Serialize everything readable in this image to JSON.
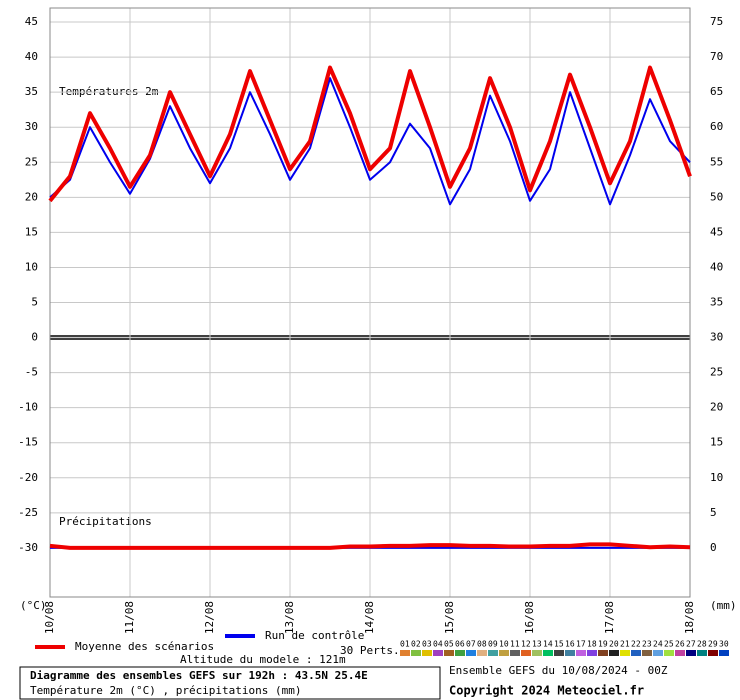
{
  "chart_data": {
    "type": "line",
    "annotations": {
      "temp_label": "Températures 2m",
      "precip_label": "Précipitations",
      "y_unit": "(°C)",
      "y2_unit": "(mm)",
      "altitude": "Altitude du modele : 121m",
      "perts": "30 Perts."
    },
    "footer": {
      "title": "Diagramme des ensembles GEFS sur 192h : 43.5N 25.4E",
      "subtitle": "Température 2m (°C) , précipitations (mm)",
      "run": "Ensemble GEFS du 10/08/2024 - 00Z",
      "copyright": "Copyright 2024 Meteociel.fr"
    },
    "x": [
      0,
      6,
      12,
      18,
      24,
      30,
      36,
      42,
      48,
      54,
      60,
      66,
      72,
      78,
      84,
      90,
      96,
      102,
      108,
      114,
      120,
      126,
      132,
      138,
      144,
      150,
      156,
      162,
      168,
      174,
      180,
      186,
      192
    ],
    "xlim": [
      0,
      192
    ],
    "xticks": [
      {
        "value": 0,
        "label": "10/08"
      },
      {
        "value": 24,
        "label": "11/08"
      },
      {
        "value": 48,
        "label": "12/08"
      },
      {
        "value": 72,
        "label": "13/08"
      },
      {
        "value": 96,
        "label": "14/08"
      },
      {
        "value": 120,
        "label": "15/08"
      },
      {
        "value": 144,
        "label": "16/08"
      },
      {
        "value": 168,
        "label": "17/08"
      },
      {
        "value": 192,
        "label": "18/08"
      }
    ],
    "ylim": [
      -37,
      47
    ],
    "yticks": [
      45,
      40,
      35,
      30,
      25,
      20,
      15,
      10,
      5,
      0,
      -5,
      -10,
      -15,
      -20,
      -25,
      -30
    ],
    "y2lim": [
      -7,
      77
    ],
    "y2ticks": [
      75,
      70,
      65,
      60,
      55,
      50,
      45,
      40,
      35,
      30,
      25,
      20,
      15,
      10,
      5,
      0
    ],
    "grid": true,
    "series": [
      {
        "name": "Moyenne des scénarios",
        "color": "#ee0000",
        "width": 4,
        "values": [
          19.5,
          23,
          32,
          27,
          21.5,
          26,
          35,
          29,
          23,
          29,
          38,
          31,
          24,
          28,
          38.5,
          32,
          24,
          27,
          38,
          30,
          21.5,
          27,
          37,
          30,
          21,
          28,
          37.5,
          30,
          22,
          28,
          38.5,
          31,
          23
        ]
      },
      {
        "name": "Run de contrôle",
        "color": "#0000ee",
        "width": 2,
        "values": [
          20,
          22.5,
          30,
          25,
          20.5,
          25.5,
          33,
          27,
          22,
          27,
          35,
          29,
          22.5,
          27,
          37,
          30,
          22.5,
          25,
          30.5,
          27,
          19,
          24,
          34.5,
          28,
          19.5,
          24,
          35,
          27,
          19,
          26,
          34,
          28,
          25
        ]
      },
      {
        "name": "Moyenne des scénarios",
        "color": "#ee0000",
        "width": 4,
        "axis": "y2",
        "values": [
          0.3,
          0,
          0,
          0,
          0,
          0,
          0,
          0,
          0,
          0,
          0,
          0,
          0,
          0,
          0,
          0.2,
          0.2,
          0.3,
          0.3,
          0.4,
          0.4,
          0.3,
          0.3,
          0.2,
          0.2,
          0.3,
          0.3,
          0.5,
          0.5,
          0.3,
          0.1,
          0.2,
          0.1
        ]
      },
      {
        "name": "Run de contrôle",
        "color": "#0000ee",
        "width": 2,
        "axis": "y2",
        "values": [
          0,
          0,
          0,
          0,
          0,
          0,
          0,
          0,
          0,
          0,
          0,
          0,
          0,
          0,
          0,
          0,
          0,
          0,
          0,
          0,
          0,
          0,
          0,
          0,
          0,
          0,
          0,
          0,
          0,
          0,
          0,
          0,
          0
        ]
      }
    ],
    "members": [
      {
        "name": "01",
        "color": "#e08030"
      },
      {
        "name": "02",
        "color": "#80c040"
      },
      {
        "name": "03",
        "color": "#e0c000"
      },
      {
        "name": "04",
        "color": "#a040c0"
      },
      {
        "name": "05",
        "color": "#a06020"
      },
      {
        "name": "06",
        "color": "#40a040"
      },
      {
        "name": "07",
        "color": "#2080e0"
      },
      {
        "name": "08",
        "color": "#e0b080"
      },
      {
        "name": "09",
        "color": "#40a0a0"
      },
      {
        "name": "10",
        "color": "#c0a040"
      },
      {
        "name": "11",
        "color": "#606060"
      },
      {
        "name": "12",
        "color": "#e06020"
      },
      {
        "name": "13",
        "color": "#a0c060"
      },
      {
        "name": "14",
        "color": "#00c060"
      },
      {
        "name": "15",
        "color": "#404040"
      },
      {
        "name": "16",
        "color": "#4080a0"
      },
      {
        "name": "17",
        "color": "#c060e0"
      },
      {
        "name": "18",
        "color": "#8040e0"
      },
      {
        "name": "19",
        "color": "#804020"
      },
      {
        "name": "20",
        "color": "#202020"
      },
      {
        "name": "21",
        "color": "#e0e000"
      },
      {
        "name": "22",
        "color": "#2060c0"
      },
      {
        "name": "23",
        "color": "#806040"
      },
      {
        "name": "24",
        "color": "#60a0e0"
      },
      {
        "name": "25",
        "color": "#a0e040"
      },
      {
        "name": "26",
        "color": "#c040a0"
      },
      {
        "name": "27",
        "color": "#000080"
      },
      {
        "name": "28",
        "color": "#008080"
      },
      {
        "name": "29",
        "color": "#800000"
      },
      {
        "name": "30",
        "color": "#0040c0"
      }
    ]
  }
}
